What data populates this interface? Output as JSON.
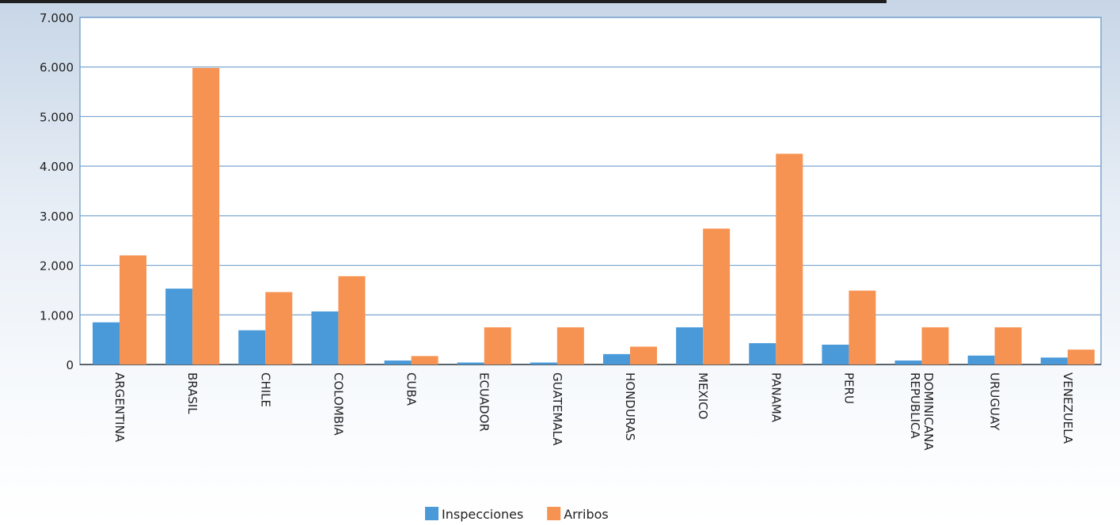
{
  "chart_data": {
    "type": "bar",
    "title": "",
    "xlabel": "",
    "ylabel": "",
    "ylim": [
      0,
      7000
    ],
    "yticks": [
      0,
      1000,
      2000,
      3000,
      4000,
      5000,
      6000,
      7000
    ],
    "ytick_labels": [
      "0",
      "1.000",
      "2.000",
      "3.000",
      "4.000",
      "5.000",
      "6.000",
      "7.000"
    ],
    "categories": [
      "ARGENTINA",
      "BRASIL",
      "CHILE",
      "COLOMBIA",
      "CUBA",
      "ECUADOR",
      "GUATEMALA",
      "HONDURAS",
      "MEXICO",
      "PANAMA",
      "PERU",
      "REPUBLICA DOMINICANA",
      "URUGUAY",
      "VENEZUELA"
    ],
    "series": [
      {
        "name": "Inspecciones",
        "color": "#4a9ada",
        "values": [
          850,
          1530,
          690,
          1070,
          80,
          40,
          40,
          210,
          750,
          430,
          400,
          80,
          180,
          140
        ]
      },
      {
        "name": "Arribos",
        "color": "#f79352",
        "values": [
          2200,
          5980,
          1460,
          1780,
          170,
          750,
          750,
          360,
          2740,
          4250,
          1490,
          750,
          750,
          300
        ]
      }
    ],
    "grid": true,
    "legend_position": "bottom-center"
  }
}
